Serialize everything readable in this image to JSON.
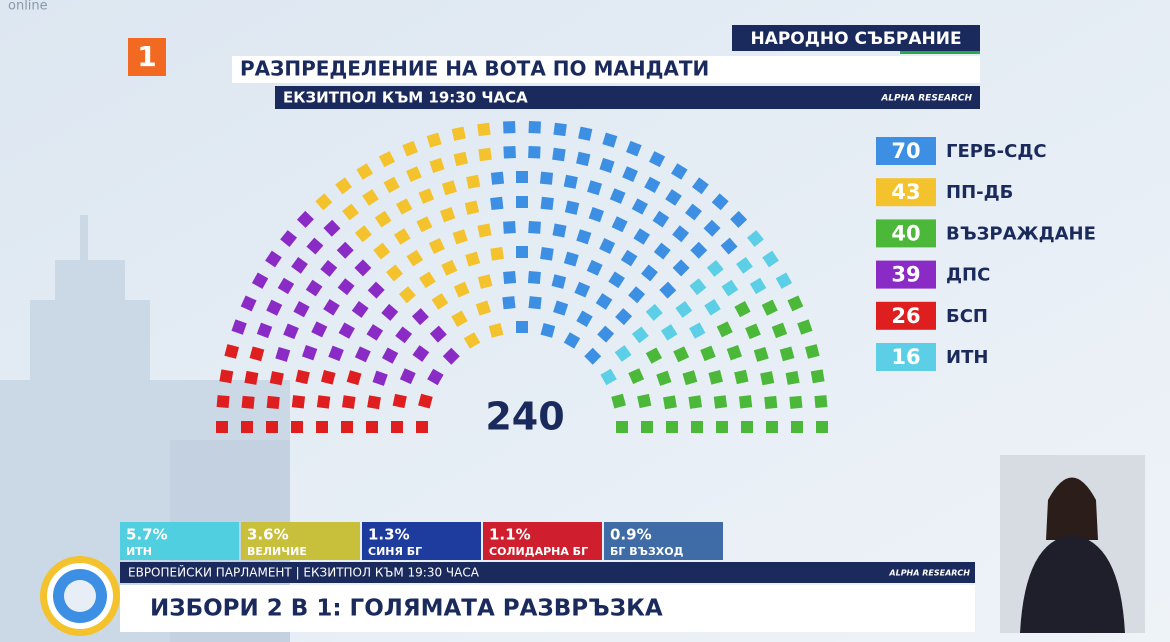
{
  "channel": {
    "logo": "1",
    "online": "online"
  },
  "header": {
    "label": "НАРОДНО СЪБРАНИЕ",
    "source": "ALPHA RESEARCH"
  },
  "chart_data": {
    "type": "parliament",
    "title": "РАЗПРЕДЕЛЕНИЕ НА ВОТА ПО МАНДАТИ",
    "subtitle": "ЕКЗИТПОЛ КЪМ 19:30 ЧАСА",
    "categories": [
      "ГЕРБ-СДС",
      "ПП-ДБ",
      "ВЪЗРАЖДАНЕ",
      "ДПС",
      "БСП",
      "ИТН"
    ],
    "values": [
      70,
      43,
      40,
      39,
      26,
      16
    ],
    "colors": [
      "#3d8fe3",
      "#f3c22c",
      "#4cb83a",
      "#8a2bc6",
      "#df1f1f",
      "#5ccfe6"
    ],
    "total": 240
  },
  "eu_results": {
    "items": [
      {
        "share": "5.7%",
        "name": "ИТН",
        "color": "#4fcfe0"
      },
      {
        "share": "3.6%",
        "name": "ВЕЛИЧИЕ",
        "color": "#c8bf3a"
      },
      {
        "share": "1.3%",
        "name": "СИНЯ БГ",
        "color": "#1e3c9e"
      },
      {
        "share": "1.1%",
        "name": "СОЛИДАРНА БГ",
        "color": "#cf1f2e"
      },
      {
        "share": "0.9%",
        "name": "БГ ВЪЗХОД",
        "color": "#3f6ca6"
      }
    ],
    "label": "ЕВРОПЕЙСКИ ПАРЛАМЕНТ | ЕКЗИТПОЛ КЪМ 19:30 ЧАСА",
    "source": "ALPHA RESEARCH"
  },
  "ticker": {
    "headline": "ИЗБОРИ 2 В 1: ГОЛЯМАТА РАЗВРЪЗКА"
  }
}
